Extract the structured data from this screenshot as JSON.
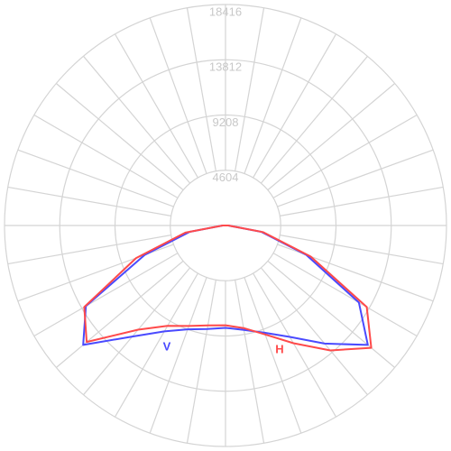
{
  "chart_data": {
    "type": "polar",
    "angles": [
      -180,
      -170,
      -160,
      -150,
      -140,
      -130,
      -120,
      -110,
      -100,
      -90,
      -80,
      -70,
      -60,
      -50,
      -40,
      -30,
      -20,
      -10,
      0,
      10,
      20,
      30,
      40,
      50,
      60,
      70,
      80,
      90,
      100,
      110,
      120,
      130,
      140,
      150,
      160,
      170,
      180
    ],
    "rlim": [
      0,
      18416
    ],
    "rticks": [
      4604,
      9208,
      13812,
      18416
    ],
    "grid": true,
    "series": [
      {
        "name": "V",
        "color": "#4a4aff",
        "values": [
          0,
          0,
          0,
          0,
          0,
          0,
          0,
          0,
          0,
          230,
          3020,
          7170,
          13440,
          15480,
          12080,
          10190,
          9210,
          8760,
          8530,
          8830,
          9510,
          10720,
          12840,
          15480,
          12840,
          7170,
          3020,
          230,
          0,
          0,
          0,
          0,
          0,
          0,
          0,
          0,
          0
        ]
      },
      {
        "name": "H",
        "color": "#ff4a4a",
        "values": [
          0,
          0,
          0,
          0,
          0,
          0,
          0,
          0,
          0,
          230,
          3400,
          7930,
          13590,
          15100,
          11330,
          9660,
          8910,
          8460,
          8310,
          8680,
          9660,
          11330,
          13590,
          15860,
          13590,
          7550,
          3170,
          230,
          0,
          0,
          0,
          0,
          0,
          0,
          0,
          0,
          0
        ]
      }
    ]
  }
}
